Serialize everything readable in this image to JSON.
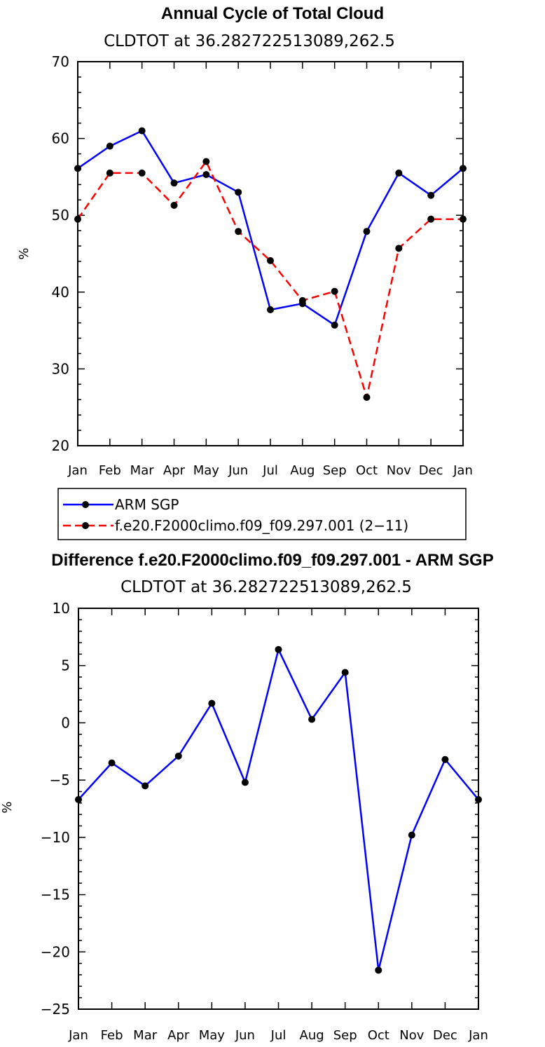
{
  "chart_data": [
    {
      "type": "line",
      "title": "Annual Cycle of Total Cloud",
      "subtitle": "CLDTOT at 36.282722513089,262.5",
      "xlabel": "",
      "ylabel": "%",
      "categories": [
        "Jan",
        "Feb",
        "Mar",
        "Apr",
        "May",
        "Jun",
        "Jul",
        "Aug",
        "Sep",
        "Oct",
        "Nov",
        "Dec",
        "Jan"
      ],
      "ylim": [
        20,
        70
      ],
      "yticks": [
        20,
        30,
        40,
        50,
        60,
        70
      ],
      "series": [
        {
          "name": "ARM SGP",
          "color": "#0000ff",
          "dash": "solid",
          "values": [
            56.1,
            59.0,
            61.0,
            54.2,
            55.3,
            53.0,
            37.7,
            38.5,
            35.7,
            47.9,
            55.5,
            52.6,
            56.1
          ]
        },
        {
          "name": "f.e20.F2000climo.f09_f09.297.001 (2−11)",
          "color": "#ff0000",
          "dash": "dashed",
          "values": [
            49.5,
            55.5,
            55.5,
            51.3,
            57.0,
            47.9,
            44.1,
            38.9,
            40.1,
            26.3,
            45.7,
            49.5,
            49.5
          ]
        }
      ],
      "legend": "bottom-left"
    },
    {
      "type": "line",
      "title": "Difference f.e20.F2000climo.f09_f09.297.001 - ARM SGP",
      "subtitle": "CLDTOT at 36.282722513089,262.5",
      "xlabel": "",
      "ylabel": "%",
      "categories": [
        "Jan",
        "Feb",
        "Mar",
        "Apr",
        "May",
        "Jun",
        "Jul",
        "Aug",
        "Sep",
        "Oct",
        "Nov",
        "Dec",
        "Jan"
      ],
      "ylim": [
        -25,
        10
      ],
      "yticks": [
        -25,
        -20,
        -15,
        -10,
        -5,
        0,
        5,
        10
      ],
      "ytick_labels": [
        "−25",
        "−20",
        "−15",
        "−10",
        "−5",
        "0",
        "5",
        "10"
      ],
      "series": [
        {
          "name": "Difference",
          "color": "#0000ff",
          "dash": "solid",
          "values": [
            -6.7,
            -3.5,
            -5.5,
            -2.9,
            1.7,
            -5.2,
            6.4,
            0.3,
            4.4,
            -21.6,
            -9.8,
            -3.2,
            -6.7
          ]
        }
      ]
    }
  ]
}
